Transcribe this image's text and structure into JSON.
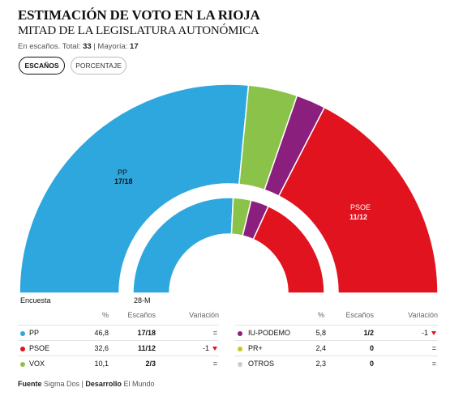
{
  "header": {
    "title": "ESTIMACIÓN DE VOTO EN LA RIOJA",
    "subtitle": "MITAD DE LA LEGISLATURA AUTONÓMICA",
    "meta_prefix": "En escaños. Total: ",
    "total": "33",
    "meta_sep": " | Mayoría: ",
    "majority": "17"
  },
  "toggle": {
    "seats_label": "ESCAÑOS",
    "percent_label": "PORCENTAJE",
    "active": "seats"
  },
  "chart_labels": {
    "outer_caption": "Encuesta",
    "inner_caption": "28-M",
    "pp_name": "PP",
    "pp_seats": "17/18",
    "psoe_name": "PSOE",
    "psoe_seats": "11/12"
  },
  "table": {
    "headers": {
      "pct": "%",
      "seats": "Escaños",
      "variation": "Variación"
    },
    "left_rows": [
      {
        "name": "PP",
        "pct": "46,8",
        "seats": "17/18",
        "variation": "=",
        "color": "#2ea7df"
      },
      {
        "name": "PSOE",
        "pct": "32,6",
        "seats": "11/12",
        "variation": "-1",
        "color": "#e0131f"
      },
      {
        "name": "VOX",
        "pct": "10,1",
        "seats": "2/3",
        "variation": "=",
        "color": "#8bc34a"
      }
    ],
    "right_rows": [
      {
        "name": "IU-PODEMO",
        "pct": "5,8",
        "seats": "1/2",
        "variation": "-1",
        "color": "#8b1f7d"
      },
      {
        "name": "PR+",
        "pct": "2,4",
        "seats": "0",
        "variation": "=",
        "color": "#c8c820"
      },
      {
        "name": "OTROS",
        "pct": "2,3",
        "seats": "0",
        "variation": "=",
        "color": "#cccccc"
      }
    ]
  },
  "footer": {
    "source_label": "Fuente",
    "source": "Sigma Dos",
    "sep": " | ",
    "dev_label": "Desarrollo",
    "dev": "El Mundo"
  },
  "chart_data": {
    "type": "pie",
    "subtype": "parliament-hemicycle",
    "unit": "escaños",
    "total_seats": 33,
    "majority": 17,
    "rings": [
      {
        "name": "Encuesta",
        "slices": [
          {
            "party": "PP",
            "seats": 17.5,
            "color": "#2ea7df"
          },
          {
            "party": "VOX",
            "seats": 2.5,
            "color": "#8bc34a"
          },
          {
            "party": "IU-PODEMOS",
            "seats": 1.5,
            "color": "#8b1f7d"
          },
          {
            "party": "PSOE",
            "seats": 11.5,
            "color": "#e0131f"
          }
        ]
      },
      {
        "name": "28-M",
        "slices": [
          {
            "party": "PP",
            "seats": 17,
            "color": "#2ea7df"
          },
          {
            "party": "VOX",
            "seats": 2,
            "color": "#8bc34a"
          },
          {
            "party": "IU-PODEMOS",
            "seats": 2,
            "color": "#8b1f7d"
          },
          {
            "party": "PSOE",
            "seats": 12,
            "color": "#e0131f"
          }
        ]
      }
    ]
  }
}
